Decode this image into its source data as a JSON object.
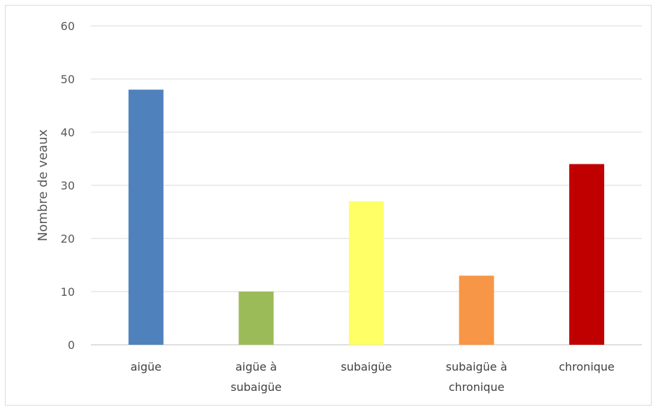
{
  "chart_data": {
    "type": "bar",
    "title": "",
    "xlabel": "",
    "ylabel": "Nombre de veaux",
    "ylim": [
      0,
      60
    ],
    "yticks": [
      0,
      10,
      20,
      30,
      40,
      50,
      60
    ],
    "grid": true,
    "legend": "none",
    "categories": [
      [
        "aigüe"
      ],
      [
        "aigüe à",
        "subaigüe"
      ],
      [
        "subaigüe"
      ],
      [
        "subaigüe à",
        "chronique"
      ],
      [
        "chronique"
      ]
    ],
    "values": [
      48,
      10,
      27,
      13,
      34
    ],
    "colors": [
      "#4f81bd",
      "#9bbb59",
      "#ffff66",
      "#f79646",
      "#c00000"
    ]
  }
}
